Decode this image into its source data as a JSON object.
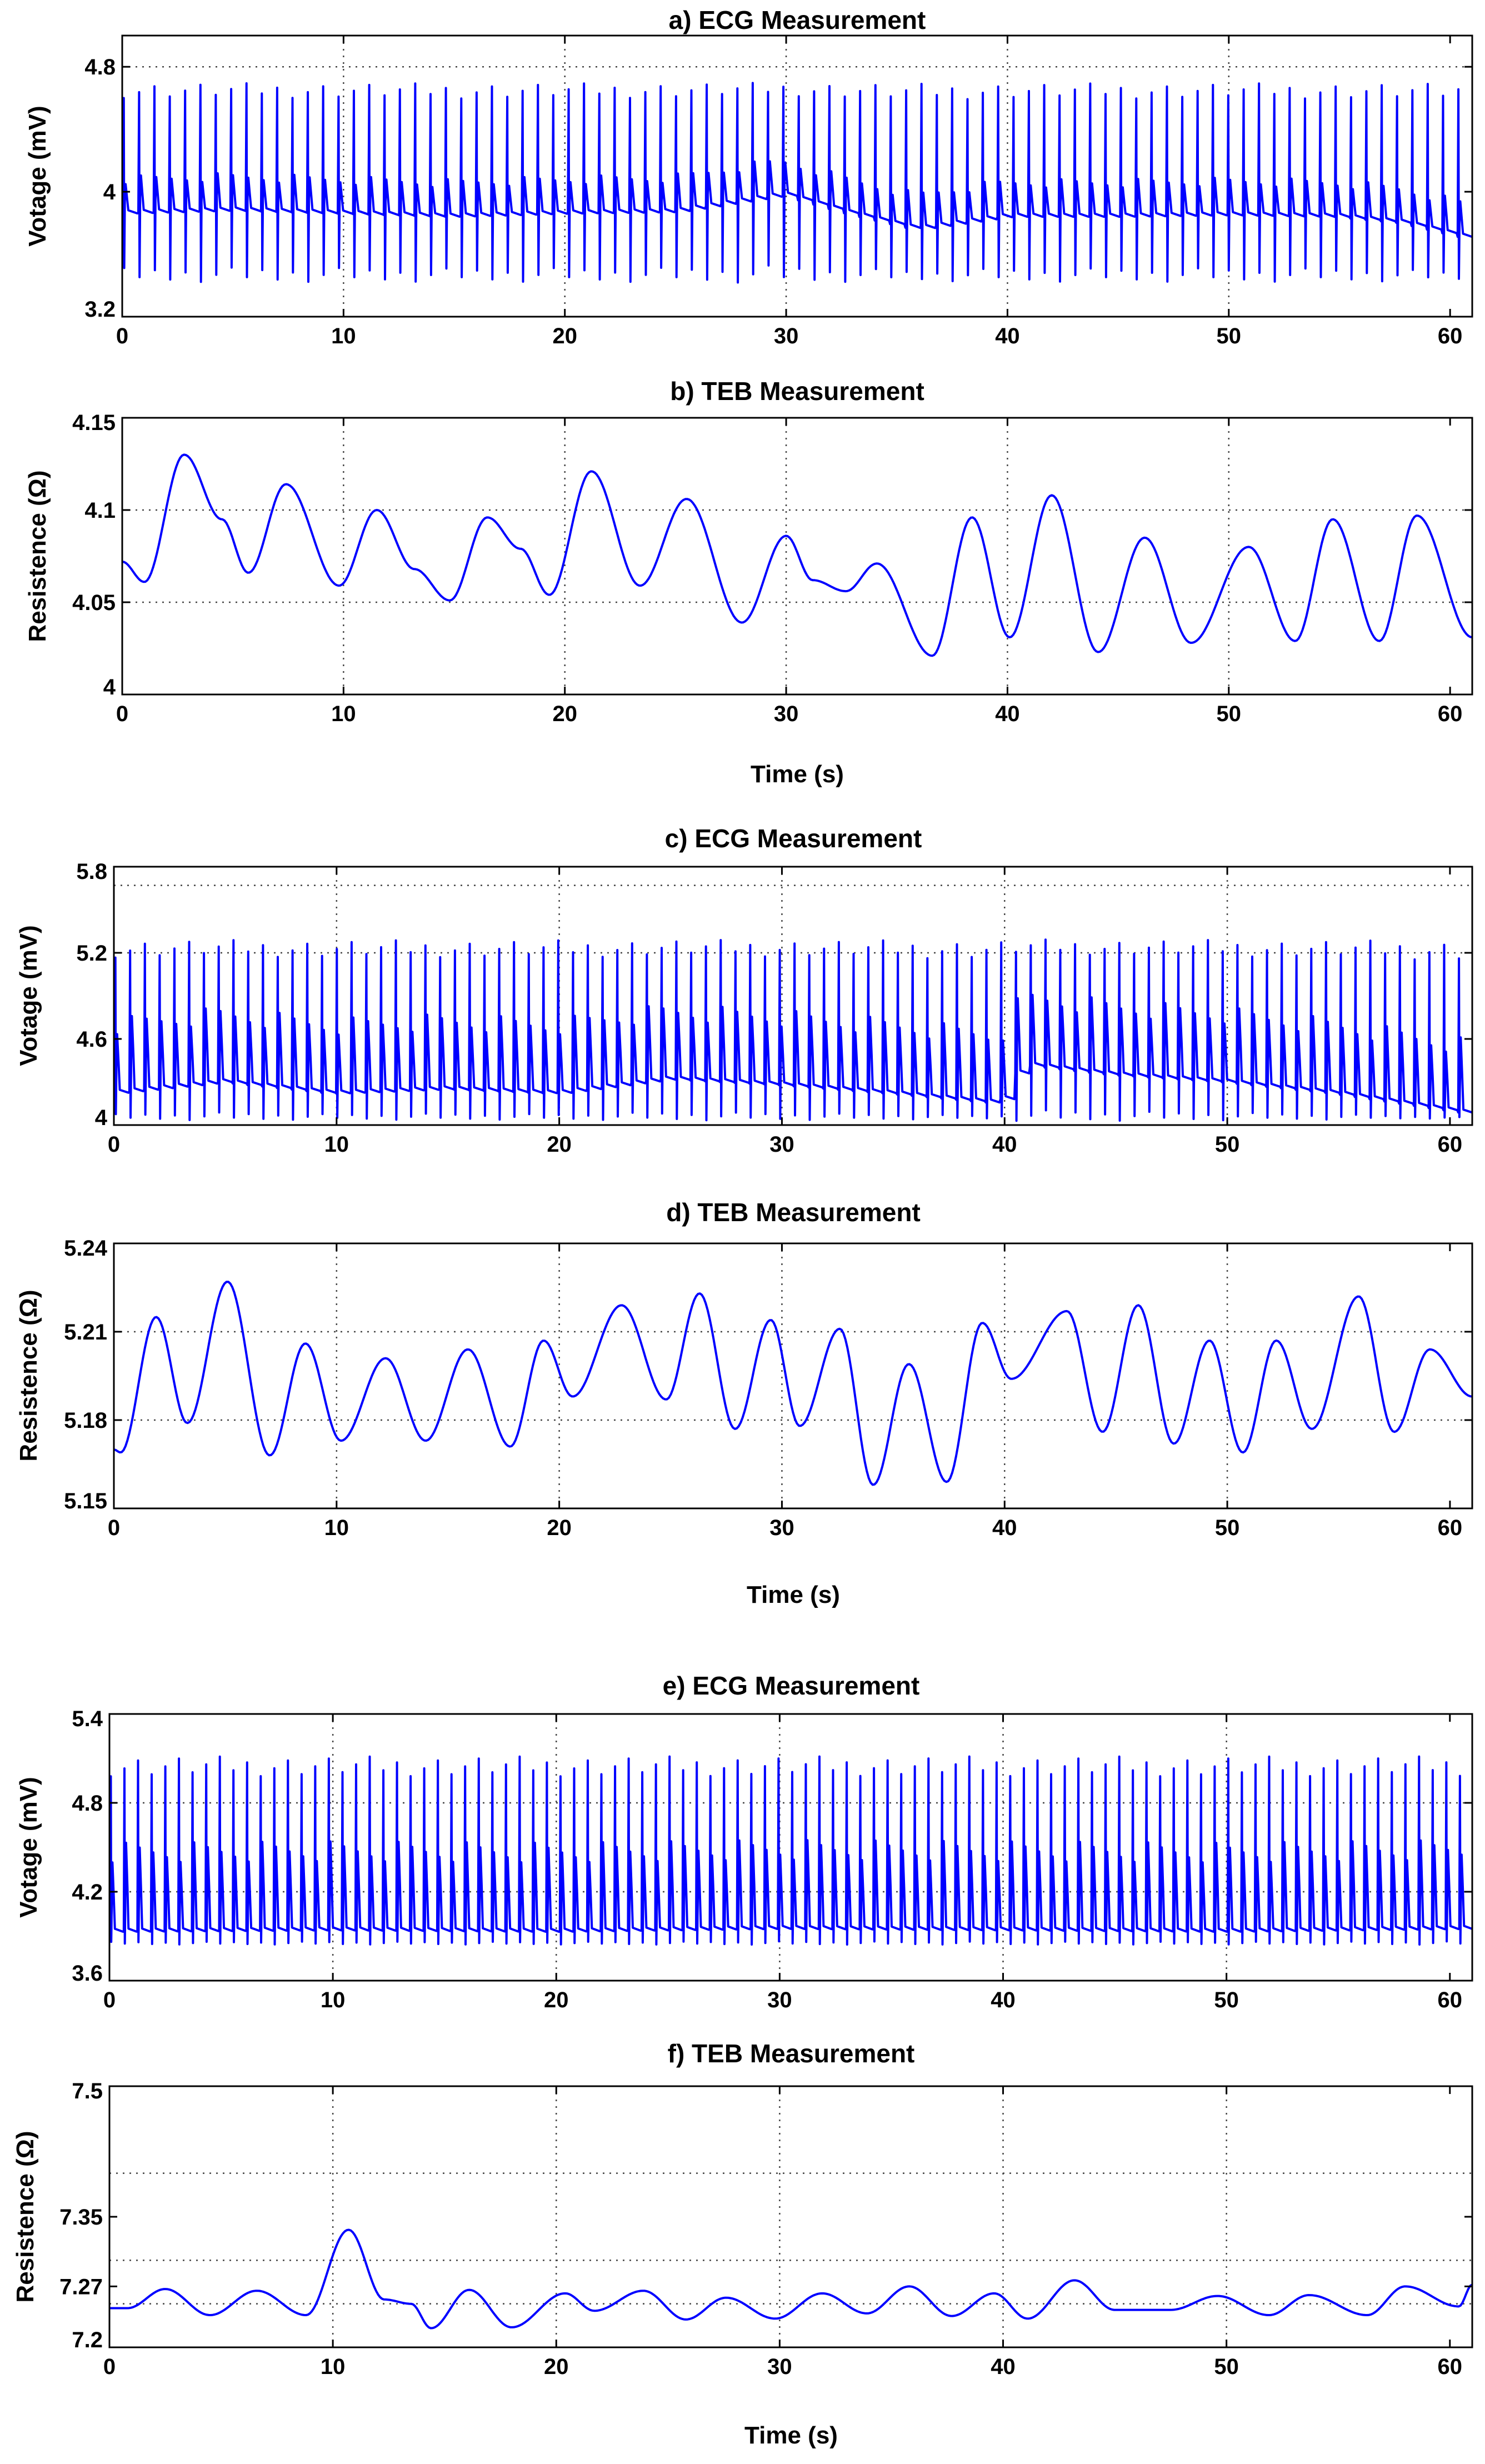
{
  "figure": {
    "xlabel_top": "Time (s)",
    "xlabel_middle": "Time (s)",
    "xlabel_bottom": "Time (s)"
  },
  "chart_data": [
    {
      "id": "a",
      "type": "line",
      "signal": "ecg",
      "title": "a) ECG Measurement",
      "ylabel": "Votage (mV)",
      "xlabel": "",
      "xlim": [
        0,
        61
      ],
      "ylim": [
        3.2,
        5.0
      ],
      "xticks": [
        0,
        10,
        20,
        30,
        40,
        50,
        60
      ],
      "yticks": [
        3.2,
        4,
        4.8
      ],
      "ytick_labels": [
        "3.2",
        "4",
        "4.8"
      ],
      "hgrid": [
        4.8
      ],
      "vgrid": [
        10,
        20,
        30,
        40,
        50
      ],
      "series": [
        {
          "name": "ECG",
          "color": "#0000ff",
          "beats": 88,
          "baseline_t": [
            0,
            5,
            10,
            15,
            20,
            25,
            30,
            33,
            36,
            40,
            45,
            50,
            55,
            58,
            61
          ],
          "baseline_v": [
            3.86,
            3.88,
            3.86,
            3.84,
            3.86,
            3.87,
            3.98,
            3.86,
            3.76,
            3.84,
            3.84,
            3.85,
            3.84,
            3.8,
            3.7
          ],
          "peak": 4.72,
          "trough": 3.45,
          "t_wave": 0.22
        }
      ]
    },
    {
      "id": "b",
      "type": "line",
      "signal": "teb",
      "title": "b) TEB Measurement",
      "ylabel": "Resistence (Ω)",
      "xlabel": "Time (s)",
      "xlim": [
        0,
        61
      ],
      "ylim": [
        4.0,
        4.15
      ],
      "xticks": [
        0,
        10,
        20,
        30,
        40,
        50,
        60
      ],
      "yticks": [
        4,
        4.05,
        4.1,
        4.15
      ],
      "ytick_labels": [
        "4",
        "4.05",
        "4.1",
        "4.15"
      ],
      "hgrid": [
        4.05,
        4.1
      ],
      "vgrid": [
        10,
        20,
        30,
        40,
        50
      ],
      "series": [
        {
          "name": "TEB",
          "color": "#0000ff",
          "t": [
            0,
            1,
            2.8,
            4.5,
            5.7,
            7.4,
            9.8,
            11.5,
            13.2,
            14.8,
            16.5,
            18,
            19.3,
            21.2,
            23.4,
            25.5,
            28,
            30,
            31.2,
            32.7,
            34.1,
            36.6,
            38.4,
            40.1,
            42,
            44.1,
            46.2,
            48.3,
            50.9,
            53,
            54.7,
            56.8,
            58.5,
            61
          ],
          "v": [
            4.072,
            4.061,
            4.13,
            4.095,
            4.066,
            4.114,
            4.059,
            4.1,
            4.068,
            4.051,
            4.096,
            4.079,
            4.054,
            4.121,
            4.059,
            4.106,
            4.039,
            4.086,
            4.062,
            4.056,
            4.071,
            4.021,
            4.096,
            4.031,
            4.108,
            4.023,
            4.085,
            4.028,
            4.08,
            4.029,
            4.095,
            4.029,
            4.097,
            4.031
          ]
        }
      ]
    },
    {
      "id": "c",
      "type": "line",
      "signal": "ecg",
      "title": "c) ECG Measurement",
      "ylabel": "Votage (mV)",
      "xlabel": "",
      "xlim": [
        0,
        61
      ],
      "ylim": [
        4.0,
        5.8
      ],
      "xticks": [
        0,
        10,
        20,
        30,
        40,
        50,
        60
      ],
      "yticks": [
        4,
        4.6,
        5.2,
        5.8
      ],
      "ytick_labels": [
        "4",
        "4.6",
        "5.2",
        "5.8"
      ],
      "hgrid": [
        5.2,
        5.67
      ],
      "vgrid": [
        10,
        20,
        30,
        40,
        50
      ],
      "series": [
        {
          "name": "ECG",
          "color": "#0000ff",
          "beats": 92,
          "baseline_t": [
            0,
            5,
            10,
            15,
            20,
            25,
            30,
            35,
            40,
            41,
            45,
            50,
            55,
            58,
            61
          ],
          "baseline_v": [
            4.22,
            4.3,
            4.22,
            4.25,
            4.22,
            4.32,
            4.28,
            4.22,
            4.15,
            4.42,
            4.35,
            4.3,
            4.22,
            4.15,
            4.08
          ],
          "peak": 5.32,
          "trough": 4.05,
          "t_wave": 0.48
        }
      ]
    },
    {
      "id": "d",
      "type": "line",
      "signal": "teb",
      "title": "d) TEB Measurement",
      "ylabel": "Resistence (Ω)",
      "xlabel": "Time (s)",
      "xlim": [
        0,
        61
      ],
      "ylim": [
        5.15,
        5.24
      ],
      "xticks": [
        0,
        10,
        20,
        30,
        40,
        50,
        60
      ],
      "yticks": [
        5.15,
        5.18,
        5.21,
        5.24
      ],
      "ytick_labels": [
        "5.15",
        "5.18",
        "5.21",
        "5.24"
      ],
      "hgrid": [
        5.18,
        5.21
      ],
      "vgrid": [
        10,
        20,
        30,
        40,
        50
      ],
      "series": [
        {
          "name": "TEB",
          "color": "#0000ff",
          "t": [
            0,
            0.3,
            1.9,
            3.3,
            5.1,
            7,
            8.6,
            10.2,
            12.2,
            14,
            15.9,
            17.8,
            19.3,
            20.6,
            22.8,
            24.8,
            26.3,
            27.9,
            29.5,
            30.8,
            32.6,
            34.1,
            35.7,
            37.4,
            39,
            40.3,
            42.8,
            44.4,
            46,
            47.6,
            49.2,
            50.7,
            52.2,
            53.8,
            55.9,
            57.5,
            59.1,
            61
          ],
          "v": [
            5.17,
            5.169,
            5.215,
            5.179,
            5.227,
            5.168,
            5.206,
            5.173,
            5.201,
            5.173,
            5.204,
            5.171,
            5.207,
            5.188,
            5.219,
            5.187,
            5.223,
            5.177,
            5.214,
            5.178,
            5.211,
            5.158,
            5.199,
            5.159,
            5.213,
            5.194,
            5.217,
            5.176,
            5.219,
            5.172,
            5.207,
            5.169,
            5.207,
            5.177,
            5.222,
            5.176,
            5.204,
            5.188
          ]
        }
      ]
    },
    {
      "id": "e",
      "type": "line",
      "signal": "ecg",
      "title": "e) ECG Measurement",
      "ylabel": "Votage (mV)",
      "xlabel": "",
      "xlim": [
        0,
        61
      ],
      "ylim": [
        3.6,
        5.4
      ],
      "xticks": [
        0,
        10,
        20,
        30,
        40,
        50,
        60
      ],
      "yticks": [
        3.6,
        4.2,
        4.8,
        5.4
      ],
      "ytick_labels": [
        "3.6",
        "4.2",
        "4.8",
        "5.4"
      ],
      "hgrid": [
        4.2,
        4.8
      ],
      "vgrid": [
        10,
        20,
        30,
        40,
        50
      ],
      "series": [
        {
          "name": "ECG",
          "color": "#0000ff",
          "beats": 100,
          "baseline_t": [
            0,
            10,
            20,
            30,
            40,
            50,
            61
          ],
          "baseline_v": [
            3.93,
            3.94,
            3.93,
            3.95,
            3.94,
            3.93,
            3.95
          ],
          "peak": 5.15,
          "trough": 3.85,
          "t_wave": 0.55
        }
      ]
    },
    {
      "id": "f",
      "type": "line",
      "signal": "teb",
      "title": "f) TEB Measurement",
      "ylabel": "Resistence (Ω)",
      "xlabel": "Time (s)",
      "xlim": [
        0,
        61
      ],
      "ylim": [
        7.2,
        7.5
      ],
      "xticks": [
        0,
        10,
        20,
        30,
        40,
        50,
        60
      ],
      "yticks": [
        7.2,
        7.27,
        7.35,
        7.5
      ],
      "ytick_labels": [
        "7.2",
        "7.27",
        "7.35",
        "7.5"
      ],
      "hgrid": [
        7.25,
        7.3,
        7.4
      ],
      "vgrid": [
        10,
        20,
        30,
        40,
        50
      ],
      "series": [
        {
          "name": "TEB",
          "color": "#0000ff",
          "t": [
            0,
            0.8,
            2.5,
            4.5,
            6.6,
            8.8,
            10.7,
            12.3,
            13.5,
            14.4,
            16.1,
            18,
            20.4,
            21.7,
            23.9,
            25.8,
            27.6,
            29.8,
            31.9,
            33.9,
            35.8,
            37.7,
            39.6,
            41.1,
            43.2,
            45,
            47.5,
            49.6,
            51.9,
            53.7,
            56.3,
            58,
            60.4,
            61
          ],
          "v": [
            7.245,
            7.245,
            7.267,
            7.237,
            7.265,
            7.237,
            7.335,
            7.255,
            7.25,
            7.222,
            7.266,
            7.223,
            7.262,
            7.242,
            7.265,
            7.232,
            7.257,
            7.233,
            7.262,
            7.239,
            7.27,
            7.236,
            7.262,
            7.233,
            7.277,
            7.243,
            7.243,
            7.259,
            7.237,
            7.26,
            7.237,
            7.27,
            7.247,
            7.272
          ]
        }
      ]
    }
  ]
}
